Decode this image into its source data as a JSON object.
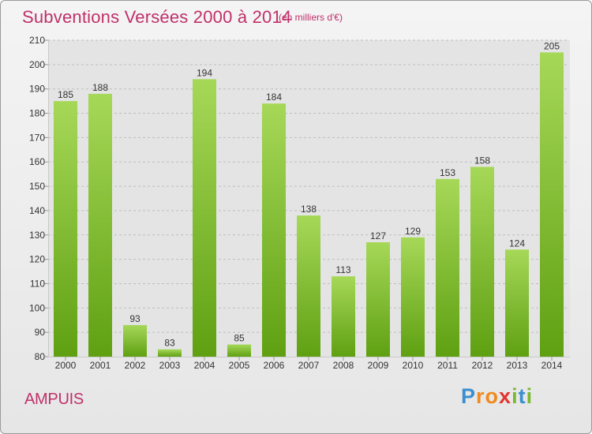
{
  "header": {
    "title": "Subventions Versées 2000 à 2014",
    "unit": "(en milliers d'€)"
  },
  "footer": {
    "commune": "AMPUIS",
    "logo_text": "Proxiti"
  },
  "colors": {
    "title": "#c0306a",
    "bar_top": "#a6d858",
    "bar_bottom": "#5fa012",
    "grid": "#bdbdbd",
    "text": "#333333"
  },
  "chart_data": {
    "type": "bar",
    "title": "Subventions Versées 2000 à 2014",
    "subtitle": "(en milliers d'€)",
    "categories": [
      "2000",
      "2001",
      "2002",
      "2003",
      "2004",
      "2005",
      "2006",
      "2007",
      "2008",
      "2009",
      "2010",
      "2011",
      "2012",
      "2013",
      "2014"
    ],
    "values": [
      185,
      188,
      93,
      83,
      194,
      85,
      184,
      138,
      113,
      127,
      129,
      153,
      158,
      124,
      205
    ],
    "ylim": [
      80,
      210
    ],
    "yticks": [
      80,
      90,
      100,
      110,
      120,
      130,
      140,
      150,
      160,
      170,
      180,
      190,
      200,
      210
    ],
    "grid": true,
    "xlabel": "",
    "ylabel": ""
  }
}
